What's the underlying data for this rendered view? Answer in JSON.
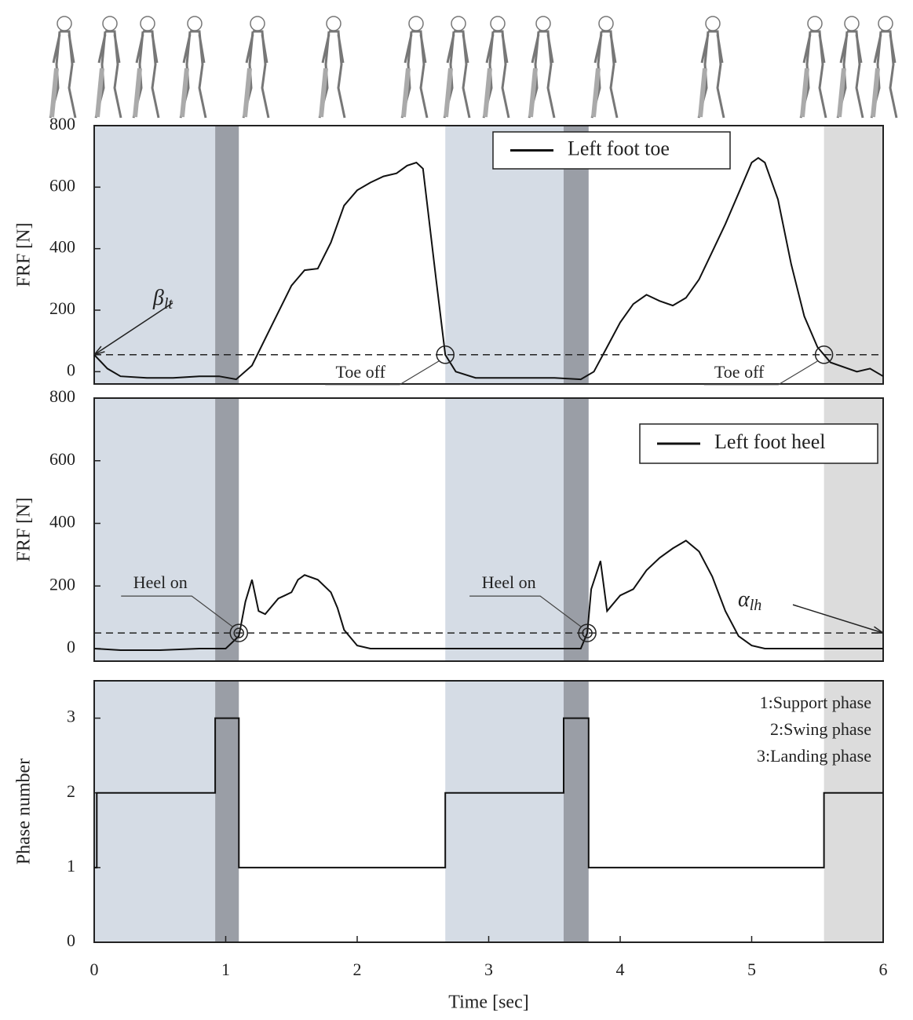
{
  "chart_data": [
    {
      "type": "line",
      "ylabel": "FRF [N]",
      "xlim": [
        0,
        6
      ],
      "ylim": [
        -40,
        800
      ],
      "yticks": [
        0,
        200,
        400,
        600,
        800
      ],
      "threshold": 55,
      "bands": [
        {
          "start": 0,
          "end": 0.92,
          "color": "#d5dce5"
        },
        {
          "start": 0.92,
          "end": 1.1,
          "color": "#9a9ea6"
        },
        {
          "start": 2.67,
          "end": 3.57,
          "color": "#d5dce5"
        },
        {
          "start": 3.57,
          "end": 3.76,
          "color": "#9a9ea6"
        },
        {
          "start": 5.55,
          "end": 6,
          "color": "#dcdcdc"
        }
      ],
      "series": [
        {
          "name": "Left foot toe",
          "color": "#111111",
          "x": [
            0,
            0.1,
            0.2,
            0.4,
            0.6,
            0.8,
            0.95,
            1.08,
            1.2,
            1.35,
            1.5,
            1.6,
            1.7,
            1.8,
            1.9,
            2.0,
            2.1,
            2.2,
            2.3,
            2.38,
            2.45,
            2.5,
            2.6,
            2.67,
            2.75,
            2.9,
            3.2,
            3.5,
            3.7,
            3.8,
            3.9,
            4.0,
            4.1,
            4.2,
            4.3,
            4.4,
            4.5,
            4.6,
            4.7,
            4.8,
            4.9,
            5.0,
            5.05,
            5.1,
            5.2,
            5.3,
            5.4,
            5.5,
            5.55,
            5.6,
            5.8,
            5.9,
            6.0
          ],
          "values": [
            55,
            10,
            -15,
            -20,
            -20,
            -15,
            -15,
            -25,
            20,
            150,
            280,
            330,
            335,
            420,
            540,
            590,
            615,
            635,
            645,
            670,
            680,
            660,
            300,
            55,
            0,
            -20,
            -20,
            -20,
            -25,
            0,
            80,
            160,
            220,
            250,
            230,
            215,
            240,
            300,
            390,
            480,
            580,
            680,
            695,
            680,
            560,
            350,
            180,
            80,
            55,
            30,
            0,
            10,
            -15
          ]
        }
      ],
      "annotations": [
        {
          "text": "β",
          "subscript": "lt",
          "marker": "arrow",
          "x": 0,
          "y": 55
        },
        {
          "text": "Toe off",
          "marker": "circle",
          "x": 2.67,
          "y": 55
        },
        {
          "text": "Toe off",
          "marker": "circle",
          "x": 5.55,
          "y": 55
        }
      ]
    },
    {
      "type": "line",
      "ylabel": "FRF [N]",
      "xlim": [
        0,
        6
      ],
      "ylim": [
        -40,
        800
      ],
      "yticks": [
        0,
        200,
        400,
        600,
        800
      ],
      "threshold": 50,
      "bands": [
        {
          "start": 0,
          "end": 0.92,
          "color": "#d5dce5"
        },
        {
          "start": 0.92,
          "end": 1.1,
          "color": "#9a9ea6"
        },
        {
          "start": 2.67,
          "end": 3.57,
          "color": "#d5dce5"
        },
        {
          "start": 3.57,
          "end": 3.76,
          "color": "#9a9ea6"
        },
        {
          "start": 5.55,
          "end": 6,
          "color": "#dcdcdc"
        }
      ],
      "series": [
        {
          "name": "Left foot heel",
          "color": "#111111",
          "x": [
            0,
            0.2,
            0.5,
            0.8,
            1.0,
            1.1,
            1.15,
            1.2,
            1.25,
            1.3,
            1.4,
            1.45,
            1.5,
            1.55,
            1.6,
            1.7,
            1.8,
            1.85,
            1.9,
            2.0,
            2.1,
            3.7,
            3.75,
            3.78,
            3.85,
            3.9,
            4.0,
            4.1,
            4.2,
            4.3,
            4.4,
            4.5,
            4.6,
            4.7,
            4.8,
            4.9,
            5.0,
            5.1,
            6.0
          ],
          "values": [
            0,
            -5,
            -5,
            0,
            0,
            40,
            150,
            220,
            120,
            110,
            160,
            170,
            180,
            220,
            235,
            220,
            180,
            130,
            60,
            10,
            0,
            0,
            50,
            190,
            280,
            120,
            170,
            190,
            250,
            290,
            320,
            345,
            310,
            230,
            120,
            40,
            10,
            0,
            0
          ]
        }
      ],
      "annotations": [
        {
          "text": "Heel on",
          "marker": "circle",
          "x": 1.1,
          "y": 50
        },
        {
          "text": "Heel on",
          "marker": "circle",
          "x": 3.75,
          "y": 50
        },
        {
          "text": "α",
          "subscript": "lh",
          "marker": "arrow",
          "x": 6,
          "y": 50
        }
      ]
    },
    {
      "type": "line",
      "ylabel": "Phase number",
      "xlabel": "Time [sec]",
      "xlim": [
        0,
        6
      ],
      "ylim": [
        0,
        3.5
      ],
      "xticks": [
        0,
        1,
        2,
        3,
        4,
        5,
        6
      ],
      "yticks": [
        0,
        1,
        2,
        3
      ],
      "bands": [
        {
          "start": 0,
          "end": 0.92,
          "color": "#d5dce5"
        },
        {
          "start": 0.92,
          "end": 1.1,
          "color": "#9a9ea6"
        },
        {
          "start": 2.67,
          "end": 3.57,
          "color": "#d5dce5"
        },
        {
          "start": 3.57,
          "end": 3.76,
          "color": "#9a9ea6"
        },
        {
          "start": 5.55,
          "end": 6,
          "color": "#dcdcdc"
        }
      ],
      "series": [
        {
          "color": "#111111",
          "x": [
            0,
            0.02,
            0.02,
            0.92,
            0.92,
            1.1,
            1.1,
            2.67,
            2.67,
            3.57,
            3.57,
            3.76,
            3.76,
            5.55,
            5.55,
            6
          ],
          "values": [
            1,
            1,
            2,
            2,
            3,
            3,
            1,
            1,
            2,
            2,
            3,
            3,
            1,
            1,
            2,
            2
          ]
        }
      ],
      "notes": [
        "1:Support phase",
        "2:Swing phase",
        "3:Landing phase"
      ]
    }
  ]
}
